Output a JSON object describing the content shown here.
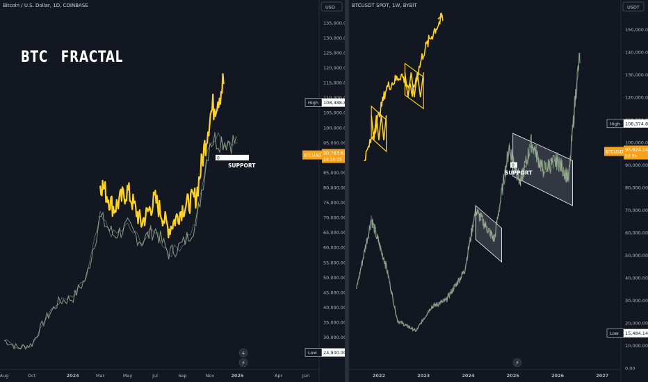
{
  "left": {
    "title": "Bitcoin / U.S. Dollar, 1D, COINBASE",
    "headline": "BTC   FRACTAL",
    "currency": "USD",
    "price_label": "BTCUSD",
    "price_value": "90,763.67",
    "price_sub": "1d 18:15",
    "high_label": "High",
    "high_value": "108,388.88",
    "low_label": "Low",
    "low_value": "24,900.00",
    "support_label": "SUPPORT",
    "support_tag": "0",
    "icons": [
      "plus-circle-icon",
      "lightning-icon"
    ]
  },
  "right": {
    "title": "BTCUSDT SPOT, 1W, BYBIT",
    "currency": "USDT",
    "price_label": "BTCUSDT",
    "price_value": "95,824.14",
    "price_sub": "5d 9h",
    "high_label": "High",
    "high_value": "108,374.89",
    "low_label": "Low",
    "low_value": "15,484.14",
    "support_label": "SUPPORT",
    "support_tag": "0",
    "icons": [
      "lightning-icon"
    ]
  },
  "colors": {
    "background": "#131722",
    "fractal_overlay": "#ffd21f",
    "price_candles": "#8fa98b",
    "channel_fill": "#c8cbd4",
    "price_tag": "#f7a21b"
  },
  "chart_data": [
    {
      "type": "line",
      "series": [
        {
          "x": [
            "2023-08",
            "2023-09",
            "2023-10",
            "2023-11",
            "2023-12",
            "2024-01",
            "2024-02",
            "2024-03",
            "2024-04",
            "2024-05",
            "2024-06",
            "2024-07",
            "2024-08",
            "2024-09",
            "2024-10",
            "2024-11",
            "2024-12",
            "2025-01"
          ],
          "values": [
            29000,
            26500,
            27500,
            36000,
            42000,
            43000,
            50000,
            70000,
            64000,
            67000,
            62000,
            66000,
            58000,
            61000,
            68000,
            96000,
            96000,
            95000
          ]
        },
        {
          "x": [
            "2024-03",
            "2024-04",
            "2024-05",
            "2024-06",
            "2024-07",
            "2024-08",
            "2024-09",
            "2024-10",
            "2024-11",
            "2024-12"
          ],
          "values": [
            82000,
            73000,
            79000,
            68000,
            76000,
            66000,
            73000,
            77000,
            104000,
            115000
          ]
        }
      ],
      "x_ticks": [
        "Aug",
        "Oct",
        "2024",
        "Mar",
        "May",
        "Jul",
        "Sep",
        "Nov",
        "2025",
        "Apr",
        "Jun"
      ],
      "y_ticks": [
        "135,000.00",
        "130,000.00",
        "125,000.00",
        "120,000.00",
        "115,000.00",
        "110,000.00",
        "105,000.00",
        "100,000.00",
        "95,000.00",
        "90,000.00",
        "85,000.00",
        "80,000.00",
        "75,000.00",
        "70,000.00",
        "65,000.00",
        "60,000.00",
        "55,000.00",
        "50,000.00",
        "45,000.00",
        "40,000.00",
        "35,000.00",
        "30,000.00",
        "25,000.00"
      ],
      "ylim": [
        22000,
        138000
      ],
      "support_level": 90000
    },
    {
      "type": "line",
      "series": [
        {
          "x": [
            "2021-07",
            "2021-11",
            "2022-03",
            "2022-06",
            "2022-11",
            "2023-03",
            "2023-07",
            "2023-12",
            "2024-03",
            "2024-08",
            "2024-12",
            "2025-03",
            "2025-06",
            "2025-09",
            "2026-01",
            "2026-04",
            "2026-06",
            "2026-07"
          ],
          "values": [
            35000,
            66000,
            45000,
            21000,
            16500,
            27000,
            30000,
            43000,
            70000,
            57000,
            98000,
            82000,
            100000,
            88000,
            92000,
            84000,
            125000,
            138000
          ]
        },
        {
          "x": [
            "2021-09",
            "2021-12",
            "2022-03",
            "2022-07",
            "2022-10",
            "2023-01",
            "2023-04",
            "2023-06"
          ],
          "values": [
            92000,
            106000,
            124000,
            130000,
            122000,
            140000,
            150000,
            155000
          ]
        }
      ],
      "x_ticks": [
        "2022",
        "2023",
        "2024",
        "2025",
        "2026",
        "2027"
      ],
      "y_ticks": [
        "150,000.00",
        "140,000.00",
        "130,000.00",
        "120,000.00",
        "110,000.00",
        "100,000.00",
        "90,000.00",
        "80,000.00",
        "70,000.00",
        "60,000.00",
        "50,000.00",
        "40,000.00",
        "30,000.00",
        "20,000.00",
        "10,000.00",
        "0.00"
      ],
      "ylim": [
        0,
        160000
      ],
      "support_level": 90000
    }
  ]
}
